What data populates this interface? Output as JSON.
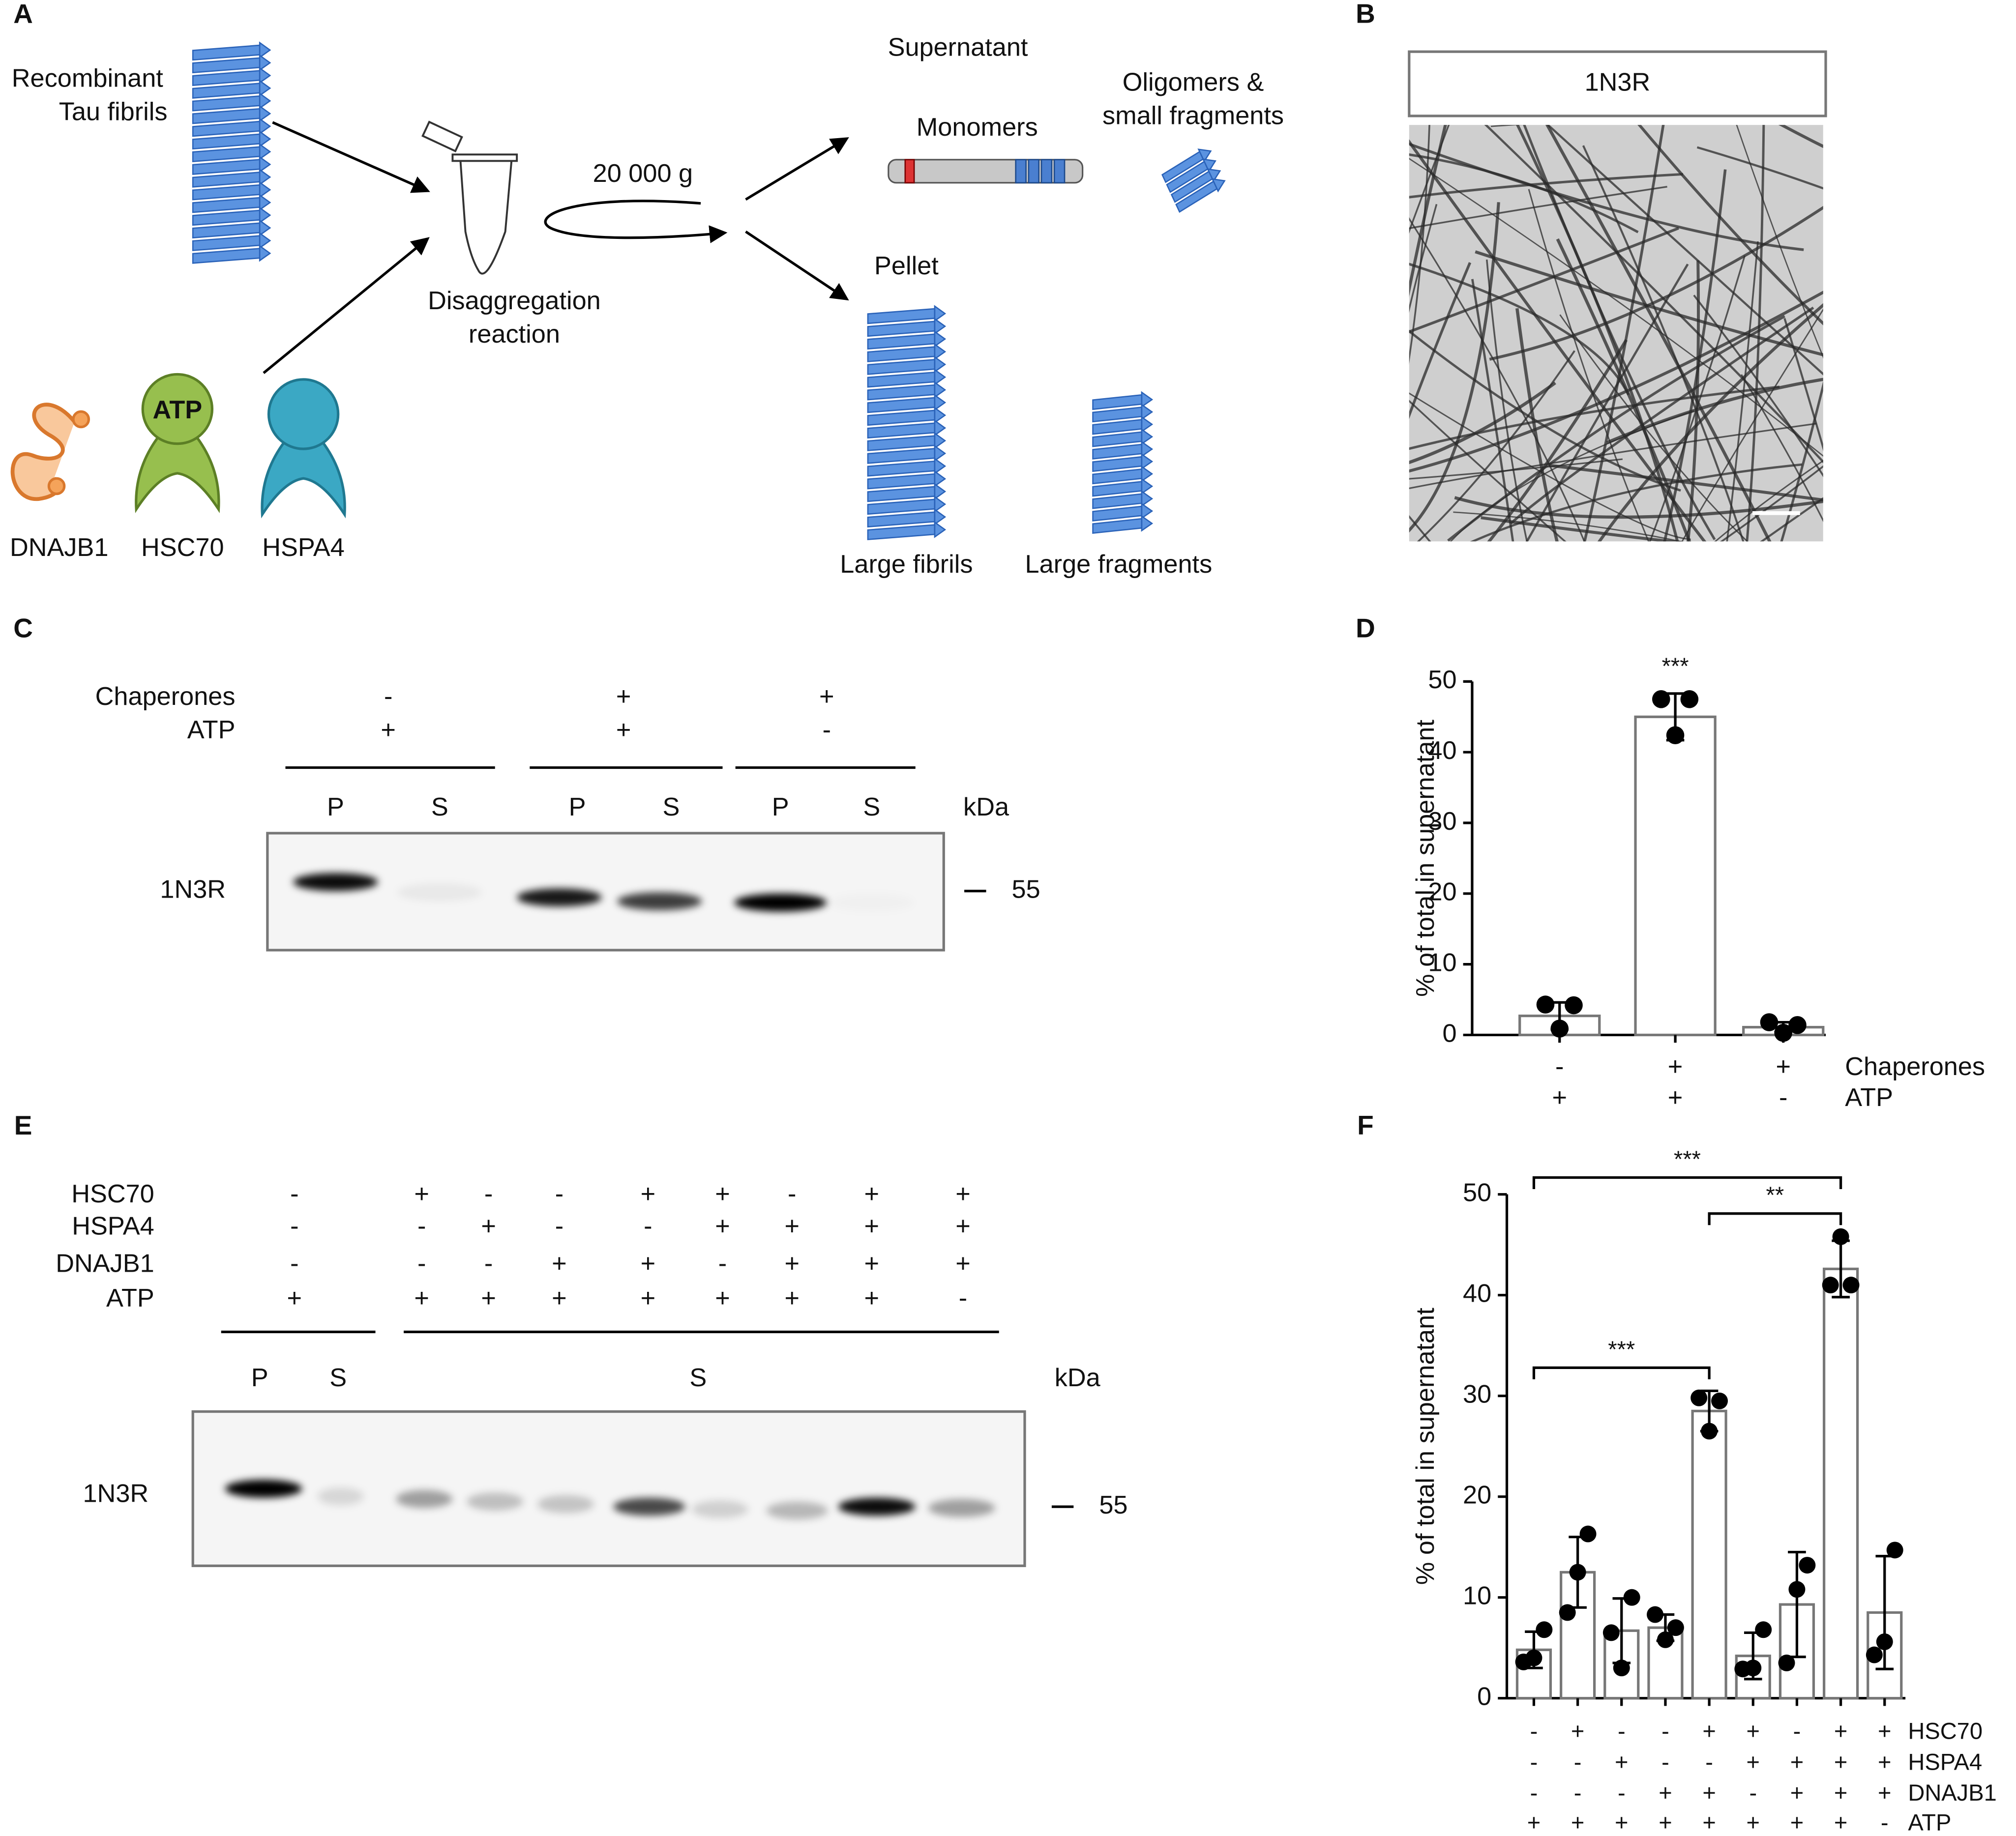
{
  "panel_labels": [
    "A",
    "B",
    "C",
    "D",
    "E",
    "F"
  ],
  "schematic": {
    "input_label": [
      "Recombinant",
      "Tau fibrils"
    ],
    "chaperones": [
      "DNAJB1",
      "HSC70",
      "HSPA4"
    ],
    "atp": "ATP",
    "reaction": [
      "Disaggregation",
      "reaction"
    ],
    "centrifugation": "20 000 g",
    "supernatant": "Supernatant",
    "monomers": "Monomers",
    "oligomers": [
      "Oligomers &",
      "small fragments"
    ],
    "pellet": "Pellet",
    "large_fibrils": "Large fibrils",
    "large_fragments": "Large fragments"
  },
  "micrograph": {
    "label": "1N3R"
  },
  "blot_c": {
    "row_labels": [
      "Chaperones",
      "ATP"
    ],
    "conditions": [
      [
        "-",
        "+",
        "+"
      ],
      [
        "+",
        "+",
        "-"
      ]
    ],
    "lanes": [
      "P",
      "S",
      "P",
      "S",
      "P",
      "S"
    ],
    "unit": "kDa",
    "protein": "1N3R",
    "marker": 55
  },
  "blot_e": {
    "row_labels": [
      "HSC70",
      "HSPA4",
      "DNAJB1",
      "ATP"
    ],
    "conditions": [
      [
        "-",
        "+",
        "-",
        "-",
        "+",
        "+",
        "-",
        "+",
        "+"
      ],
      [
        "-",
        "-",
        "+",
        "-",
        "-",
        "+",
        "+",
        "+",
        "+"
      ],
      [
        "-",
        "-",
        "-",
        "+",
        "+",
        "-",
        "+",
        "+",
        "+"
      ],
      [
        "+",
        "+",
        "+",
        "+",
        "+",
        "+",
        "+",
        "+",
        "-"
      ]
    ],
    "lanes": [
      "P",
      "S",
      "S"
    ],
    "unit": "kDa",
    "protein": "1N3R",
    "marker": 55
  },
  "chart_data": [
    {
      "type": "bar",
      "y_label": "% of total in supernatant",
      "categories": [
        null,
        null,
        null
      ],
      "condition_labels": [
        "Chaperones",
        "ATP"
      ],
      "conditions": [
        [
          "-",
          "+",
          "+"
        ],
        [
          "+",
          "+",
          "-"
        ]
      ],
      "values": [
        2.7,
        45.0,
        1.1
      ],
      "errors": [
        1.9,
        3.3,
        0.7
      ],
      "points": [
        [
          4.3,
          4.2,
          0.9
        ],
        [
          47.5,
          47.5,
          42.4
        ],
        [
          1.8,
          1.4,
          0.3
        ]
      ],
      "ylim": [
        0,
        50
      ],
      "yticks": [
        0,
        10,
        20,
        30,
        40,
        50
      ],
      "color": "#ffffff",
      "edgecolor": "#777777",
      "point_color": "#000000",
      "annotations": [
        {
          "category": 1,
          "label": "***"
        }
      ]
    },
    {
      "type": "bar",
      "y_label": "% of total in supernatant",
      "categories": [
        null,
        null,
        null,
        null,
        null,
        null,
        null,
        null,
        null
      ],
      "condition_labels": [
        "HSC70",
        "HSPA4",
        "DNAJB1",
        "ATP"
      ],
      "conditions": [
        [
          "-",
          "+",
          "-",
          "-",
          "+",
          "+",
          "-",
          "+",
          "+"
        ],
        [
          "-",
          "-",
          "+",
          "-",
          "-",
          "+",
          "+",
          "+",
          "+"
        ],
        [
          "-",
          "-",
          "-",
          "+",
          "+",
          "-",
          "+",
          "+",
          "+"
        ],
        [
          "+",
          "+",
          "+",
          "+",
          "+",
          "+",
          "+",
          "+",
          "-"
        ]
      ],
      "values": [
        4.8,
        12.5,
        6.7,
        7.0,
        28.5,
        4.2,
        9.3,
        42.6,
        8.5
      ],
      "errors": [
        1.8,
        3.5,
        3.2,
        1.3,
        2.0,
        2.3,
        5.2,
        2.8,
        5.6
      ],
      "points": [
        [
          3.6,
          6.8,
          4.0
        ],
        [
          8.5,
          16.3,
          12.5
        ],
        [
          6.5,
          10.0,
          3.0
        ],
        [
          8.3,
          7.0,
          5.8
        ],
        [
          29.8,
          29.5,
          26.5
        ],
        [
          2.9,
          6.8,
          3.0
        ],
        [
          3.5,
          13.2,
          10.8
        ],
        [
          41.0,
          41.0,
          45.8
        ],
        [
          4.3,
          14.7,
          5.6
        ]
      ],
      "ylim": [
        0,
        50
      ],
      "yticks": [
        0,
        10,
        20,
        30,
        40,
        50
      ],
      "color": "#ffffff",
      "edgecolor": "#777777",
      "point_color": "#000000",
      "brackets": [
        {
          "between": [
            0,
            4
          ],
          "label": "***"
        },
        {
          "between": [
            4,
            7
          ],
          "label": "**"
        },
        {
          "between": [
            0,
            7
          ],
          "label": "***"
        }
      ]
    }
  ]
}
